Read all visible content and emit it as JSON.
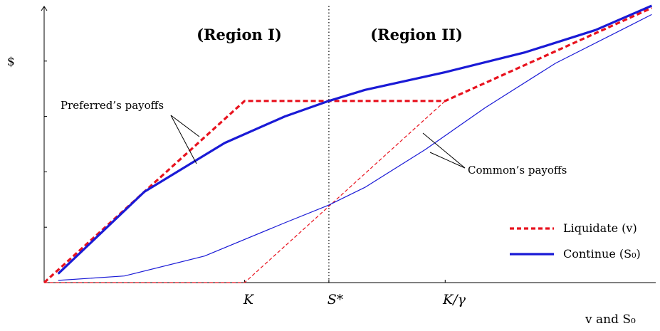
{
  "chart_data": {
    "type": "line",
    "title": "",
    "ylabel": "$",
    "xlabel": "v and S₀",
    "x_ticks": [
      "K",
      "S*",
      "K/γ"
    ],
    "x_tick_values": [
      1.0,
      1.42,
      2.0
    ],
    "xlim": [
      0,
      3.05
    ],
    "ylim": [
      0,
      1.25
    ],
    "regions": [
      "(Region I)",
      "(Region II)"
    ],
    "annotations": {
      "preferred": "Preferred’s payoffs",
      "common": "Common’s payoffs"
    },
    "legend": {
      "position": "bottom-right",
      "liquidate": "Liquidate (v)",
      "continue": "Continue (S₀)"
    },
    "series": [
      {
        "name": "Liquidate (v)",
        "role": "preferred",
        "style": "dashed",
        "weight": "thick",
        "color": "#e8121e",
        "x": [
          0,
          1.0,
          2.0,
          3.03
        ],
        "y": [
          0,
          0.82,
          0.82,
          1.24
        ]
      },
      {
        "name": "Liquidate (v)",
        "role": "common",
        "style": "dashed",
        "weight": "thin",
        "color": "#e8121e",
        "x": [
          0,
          1.0,
          2.0
        ],
        "y": [
          0,
          0,
          0.82
        ]
      },
      {
        "name": "Continue (S₀)",
        "role": "preferred",
        "style": "solid",
        "weight": "thick",
        "color": "#1a1ad6",
        "x": [
          0.07,
          0.5,
          0.9,
          1.2,
          1.42,
          1.6,
          2.0,
          2.4,
          2.75,
          3.03
        ],
        "y": [
          0.04,
          0.41,
          0.63,
          0.75,
          0.82,
          0.87,
          0.95,
          1.04,
          1.14,
          1.25
        ]
      },
      {
        "name": "Continue (S₀)",
        "role": "common",
        "style": "solid",
        "weight": "thin",
        "color": "#1a1ad6",
        "x": [
          0.07,
          0.4,
          0.8,
          1.2,
          1.42,
          1.6,
          1.9,
          2.2,
          2.55,
          3.03
        ],
        "y": [
          0.01,
          0.03,
          0.12,
          0.27,
          0.35,
          0.43,
          0.6,
          0.79,
          0.99,
          1.21
        ]
      }
    ]
  },
  "colors": {
    "liquidate": "#e8121e",
    "continue": "#1a1ad6",
    "axis": "#000000"
  }
}
